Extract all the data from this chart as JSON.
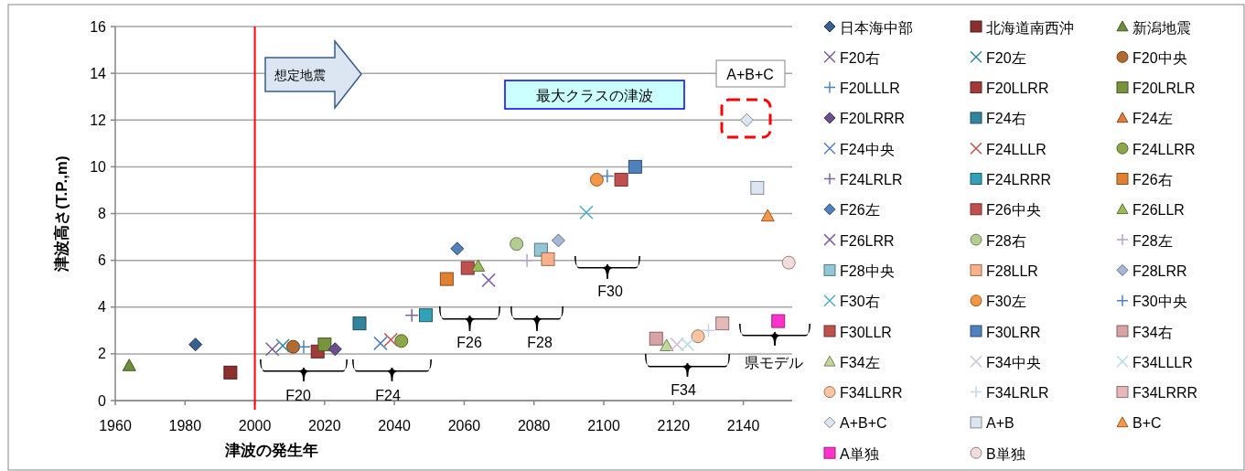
{
  "chart_data": {
    "type": "scatter",
    "xlabel": "津波の発生年",
    "ylabel": "津波高さ(T.P.,m)",
    "xlim": [
      1960,
      2154
    ],
    "xticks": [
      1960,
      1980,
      2000,
      2020,
      2040,
      2060,
      2080,
      2100,
      2120,
      2140
    ],
    "ylim": [
      0,
      16
    ],
    "yticks": [
      0,
      2,
      4,
      6,
      8,
      10,
      12,
      14,
      16
    ],
    "grid": "y",
    "legend": "right",
    "ref_lines": [
      {
        "axis": "x",
        "value": 2000,
        "color": "#ff0000"
      }
    ],
    "annotations": [
      "想定地震",
      "最大クラスの津波",
      "A+B+C",
      "F20",
      "F24",
      "F26",
      "F28",
      "F30",
      "F34",
      "県モデル"
    ],
    "series": [
      {
        "name": "日本海中部",
        "color": "#375f8f",
        "marker": "diamond",
        "x": [
          1983
        ],
        "values": [
          2.4
        ]
      },
      {
        "name": "北海道南西沖",
        "color": "#8b2e2e",
        "marker": "square",
        "x": [
          1993
        ],
        "values": [
          1.2
        ]
      },
      {
        "name": "新潟地震",
        "color": "#6b8e3a",
        "marker": "triangle",
        "x": [
          1964
        ],
        "values": [
          1.5
        ]
      },
      {
        "name": "F20右",
        "color": "#7a5a9a",
        "marker": "cross",
        "x": [
          2005
        ],
        "values": [
          2.2
        ]
      },
      {
        "name": "F20左",
        "color": "#31859c",
        "marker": "cross",
        "x": [
          2008
        ],
        "values": [
          2.35
        ]
      },
      {
        "name": "F20中央",
        "color": "#b36a2e",
        "marker": "circle",
        "x": [
          2011
        ],
        "values": [
          2.3
        ]
      },
      {
        "name": "F20LLLR",
        "color": "#4f81bd",
        "marker": "plus",
        "x": [
          2014
        ],
        "values": [
          2.3
        ]
      },
      {
        "name": "F20LLRR",
        "color": "#a33a3a",
        "marker": "square",
        "x": [
          2018
        ],
        "values": [
          2.1
        ]
      },
      {
        "name": "F20LRLR",
        "color": "#77933c",
        "marker": "square",
        "x": [
          2020
        ],
        "values": [
          2.4
        ]
      },
      {
        "name": "F20LRRR",
        "color": "#6b4f8f",
        "marker": "diamond",
        "x": [
          2023
        ],
        "values": [
          2.2
        ]
      },
      {
        "name": "F24右",
        "color": "#31849b",
        "marker": "square",
        "x": [
          2030
        ],
        "values": [
          3.3
        ]
      },
      {
        "name": "F24左",
        "color": "#e07b39",
        "marker": "triangle",
        "x": [
          null
        ],
        "values": [
          null
        ]
      },
      {
        "name": "F24中央",
        "color": "#4f81bd",
        "marker": "cross",
        "x": [
          2036
        ],
        "values": [
          2.45
        ]
      },
      {
        "name": "F24LLLR",
        "color": "#c0504d",
        "marker": "cross",
        "x": [
          2039
        ],
        "values": [
          2.6
        ]
      },
      {
        "name": "F24LLRR",
        "color": "#8aa84a",
        "marker": "circle",
        "x": [
          2042
        ],
        "values": [
          2.55
        ]
      },
      {
        "name": "F24LRLR",
        "color": "#8064a2",
        "marker": "plus",
        "x": [
          2045
        ],
        "values": [
          3.65
        ]
      },
      {
        "name": "F24LRRR",
        "color": "#31a0b8",
        "marker": "square",
        "x": [
          2049
        ],
        "values": [
          3.65
        ]
      },
      {
        "name": "F26右",
        "color": "#e08030",
        "marker": "square",
        "x": [
          2055
        ],
        "values": [
          5.2
        ]
      },
      {
        "name": "F26左",
        "color": "#4f81bd",
        "marker": "diamond",
        "x": [
          2058
        ],
        "values": [
          6.5
        ]
      },
      {
        "name": "F26中央",
        "color": "#c0504d",
        "marker": "square",
        "x": [
          2061
        ],
        "values": [
          5.67
        ]
      },
      {
        "name": "F26LLR",
        "color": "#9bbb59",
        "marker": "triangle",
        "x": [
          2064
        ],
        "values": [
          5.75
        ]
      },
      {
        "name": "F26LRR",
        "color": "#8064a2",
        "marker": "cross",
        "x": [
          2067
        ],
        "values": [
          5.15
        ]
      },
      {
        "name": "F28右",
        "color": "#b3cc91",
        "marker": "circle",
        "x": [
          2075
        ],
        "values": [
          6.7
        ]
      },
      {
        "name": "F28左",
        "color": "#b3a2c7",
        "marker": "plus",
        "x": [
          2078
        ],
        "values": [
          6.0
        ]
      },
      {
        "name": "F28中央",
        "color": "#93c6d6",
        "marker": "square",
        "x": [
          2082
        ],
        "values": [
          6.45
        ]
      },
      {
        "name": "F28LLR",
        "color": "#fab08a",
        "marker": "square",
        "x": [
          2084
        ],
        "values": [
          6.05
        ]
      },
      {
        "name": "F28LRR",
        "color": "#a5b6d6",
        "marker": "diamond",
        "x": [
          2087
        ],
        "values": [
          6.85
        ]
      },
      {
        "name": "F30右",
        "color": "#4bacc6",
        "marker": "cross",
        "x": [
          2095
        ],
        "values": [
          8.05
        ]
      },
      {
        "name": "F30左",
        "color": "#f79646",
        "marker": "circle",
        "x": [
          2098
        ],
        "values": [
          9.45
        ]
      },
      {
        "name": "F30中央",
        "color": "#4f81bd",
        "marker": "plus",
        "x": [
          2101
        ],
        "values": [
          9.6
        ]
      },
      {
        "name": "F30LLR",
        "color": "#c0504d",
        "marker": "square",
        "x": [
          2105
        ],
        "values": [
          9.45
        ]
      },
      {
        "name": "F30LRR",
        "color": "#4f81bd",
        "marker": "square",
        "x": [
          2109
        ],
        "values": [
          10.0
        ]
      },
      {
        "name": "F34右",
        "color": "#d9a3a5",
        "marker": "square",
        "x": [
          2115
        ],
        "values": [
          2.65
        ]
      },
      {
        "name": "F34左",
        "color": "#c3d69b",
        "marker": "triangle",
        "x": [
          2118
        ],
        "values": [
          2.35
        ]
      },
      {
        "name": "F34中央",
        "color": "#ccc1da",
        "marker": "cross",
        "x": [
          2121
        ],
        "values": [
          2.4
        ]
      },
      {
        "name": "F34LLLR",
        "color": "#b7dde8",
        "marker": "cross",
        "x": [
          2124
        ],
        "values": [
          2.4
        ]
      },
      {
        "name": "F34LLRR",
        "color": "#fbc4a0",
        "marker": "circle",
        "x": [
          2127
        ],
        "values": [
          2.75
        ]
      },
      {
        "name": "F34LRLR",
        "color": "#c6d4ea",
        "marker": "plus",
        "x": [
          2130
        ],
        "values": [
          3.0
        ]
      },
      {
        "name": "F34LRRR",
        "color": "#e6b9b8",
        "marker": "square",
        "x": [
          2134
        ],
        "values": [
          3.3
        ]
      },
      {
        "name": "A+B+C",
        "color": "#dce6f2",
        "marker": "diamond",
        "x": [
          2141
        ],
        "values": [
          12.0
        ]
      },
      {
        "name": "A+B",
        "color": "#dce6f2",
        "marker": "square",
        "x": [
          2144
        ],
        "values": [
          9.1
        ]
      },
      {
        "name": "B+C",
        "color": "#f79646",
        "marker": "triangle",
        "x": [
          2147
        ],
        "values": [
          7.9
        ]
      },
      {
        "name": "A単独",
        "color": "#ff33cc",
        "marker": "square",
        "x": [
          2150
        ],
        "values": [
          3.4
        ]
      },
      {
        "name": "B単独",
        "color": "#f2dcdb",
        "marker": "circle",
        "x": [
          2153
        ],
        "values": [
          5.9
        ]
      }
    ]
  }
}
